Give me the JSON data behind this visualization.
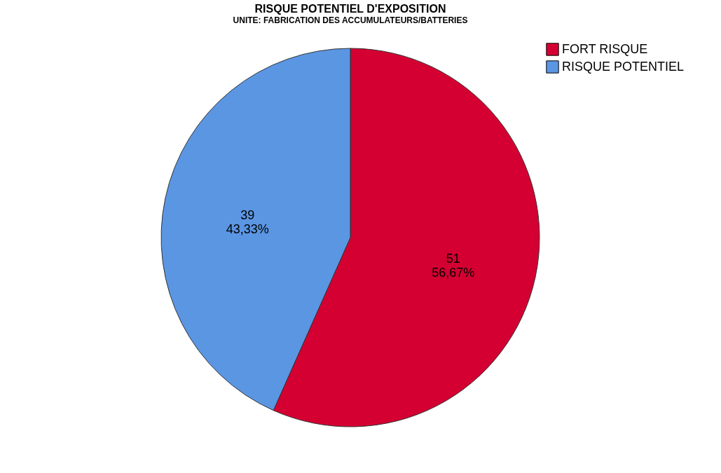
{
  "chart_data": {
    "type": "pie",
    "title": "RISQUE POTENTIEL D'EXPOSITION",
    "subtitle": "UNITE: FABRICATION DES ACCUMULATEURS/BATTERIES",
    "categories": [
      "FORT RISQUE",
      "RISQUE POTENTIEL"
    ],
    "values": [
      51,
      39
    ],
    "colors": [
      "#d40032",
      "#5b96e3"
    ],
    "value_labels": [
      "51\n56,67%",
      "39\n43,33%"
    ],
    "legend": "top right"
  }
}
